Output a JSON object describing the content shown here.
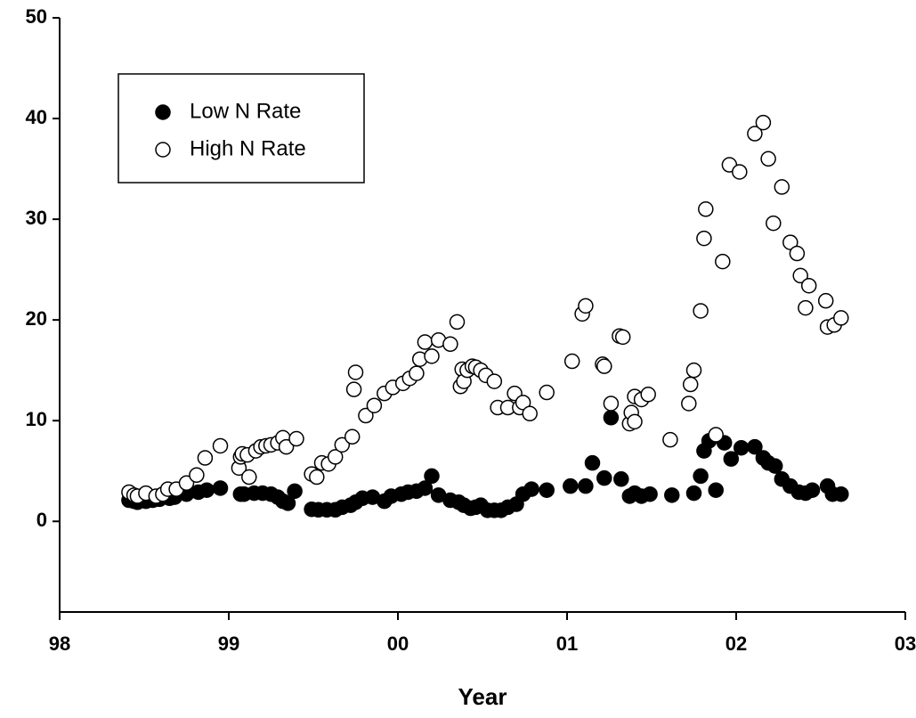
{
  "chart_data": {
    "type": "scatter",
    "x_label": "Year",
    "xlim": [
      1998,
      2003
    ],
    "ylim": [
      -9,
      50
    ],
    "xticks": [
      {
        "value": 1998,
        "label": "98"
      },
      {
        "value": 1999,
        "label": "99"
      },
      {
        "value": 2000,
        "label": "00"
      },
      {
        "value": 2001,
        "label": "01"
      },
      {
        "value": 2002,
        "label": "02"
      },
      {
        "value": 2003,
        "label": "03"
      }
    ],
    "yticks": [
      0,
      10,
      20,
      30,
      40,
      50
    ],
    "legend_position": "upper left",
    "series": [
      {
        "name": "Low N Rate",
        "color": "#000000",
        "fill": "#000000",
        "x": [
          1998.41,
          1998.44,
          1998.46,
          1998.51,
          1998.55,
          1998.59,
          1998.65,
          1998.68,
          1998.75,
          1998.82,
          1998.87,
          1998.95,
          1999.07,
          1999.09,
          1999.15,
          1999.2,
          1999.25,
          1999.29,
          1999.32,
          1999.35,
          1999.39,
          1999.49,
          1999.53,
          1999.58,
          1999.63,
          1999.67,
          1999.72,
          1999.75,
          1999.79,
          1999.85,
          1999.92,
          1999.96,
          2000.02,
          2000.06,
          2000.11,
          2000.16,
          2000.2,
          2000.24,
          2000.31,
          2000.36,
          2000.39,
          2000.43,
          2000.46,
          2000.49,
          2000.53,
          2000.57,
          2000.61,
          2000.65,
          2000.7,
          2000.74,
          2000.79,
          2000.88,
          2001.02,
          2001.11,
          2001.15,
          2001.22,
          2001.26,
          2001.32,
          2001.37,
          2001.4,
          2001.44,
          2001.49,
          2001.62,
          2001.75,
          2001.79,
          2001.81,
          2001.84,
          2001.88,
          2001.93,
          2001.97,
          2002.03,
          2002.11,
          2002.16,
          2002.19,
          2002.23,
          2002.27,
          2002.32,
          2002.37,
          2002.41,
          2002.45,
          2002.54,
          2002.57,
          2002.62
        ],
        "values": [
          2.1,
          2.0,
          1.9,
          2.0,
          2.1,
          2.2,
          2.3,
          2.4,
          2.7,
          2.9,
          3.1,
          3.3,
          2.7,
          2.7,
          2.8,
          2.8,
          2.7,
          2.4,
          2.0,
          1.8,
          3.0,
          1.2,
          1.15,
          1.15,
          1.15,
          1.4,
          1.6,
          1.9,
          2.3,
          2.4,
          2.0,
          2.5,
          2.7,
          2.9,
          3.0,
          3.3,
          4.5,
          2.6,
          2.1,
          1.9,
          1.6,
          1.3,
          1.4,
          1.6,
          1.1,
          1.1,
          1.1,
          1.4,
          1.7,
          2.7,
          3.2,
          3.1,
          3.5,
          3.5,
          5.8,
          4.3,
          10.3,
          4.2,
          2.5,
          2.8,
          2.5,
          2.7,
          2.6,
          2.8,
          4.5,
          7.0,
          8.0,
          3.1,
          7.8,
          6.2,
          7.3,
          7.4,
          6.3,
          5.8,
          5.5,
          4.2,
          3.5,
          2.9,
          2.8,
          3.1,
          3.5,
          2.7,
          2.7
        ]
      },
      {
        "name": "High N Rate",
        "color": "#000000",
        "fill": "#ffffff",
        "x": [
          1998.41,
          1998.44,
          1998.46,
          1998.51,
          1998.57,
          1998.61,
          1998.64,
          1998.69,
          1998.75,
          1998.81,
          1998.86,
          1998.95,
          1999.06,
          1999.07,
          1999.08,
          1999.11,
          1999.12,
          1999.16,
          1999.19,
          1999.22,
          1999.25,
          1999.29,
          1999.32,
          1999.34,
          1999.4,
          1999.49,
          1999.52,
          1999.55,
          1999.59,
          1999.63,
          1999.67,
          1999.73,
          1999.74,
          1999.75,
          1999.81,
          1999.86,
          1999.92,
          1999.97,
          2000.03,
          2000.07,
          2000.11,
          2000.13,
          2000.16,
          2000.2,
          2000.24,
          2000.31,
          2000.35,
          2000.37,
          2000.38,
          2000.39,
          2000.41,
          2000.44,
          2000.46,
          2000.49,
          2000.52,
          2000.57,
          2000.59,
          2000.65,
          2000.69,
          2000.72,
          2000.74,
          2000.78,
          2000.88,
          2001.03,
          2001.09,
          2001.11,
          2001.21,
          2001.22,
          2001.26,
          2001.31,
          2001.33,
          2001.37,
          2001.38,
          2001.4,
          2001.4,
          2001.44,
          2001.48,
          2001.61,
          2001.72,
          2001.73,
          2001.75,
          2001.79,
          2001.81,
          2001.82,
          2001.88,
          2001.92,
          2001.96,
          2002.02,
          2002.11,
          2002.16,
          2002.19,
          2002.22,
          2002.27,
          2002.32,
          2002.36,
          2002.38,
          2002.43,
          2002.41,
          2002.53,
          2002.54,
          2002.58,
          2002.62
        ],
        "values": [
          2.9,
          2.6,
          2.5,
          2.8,
          2.5,
          2.7,
          3.2,
          3.2,
          3.8,
          4.6,
          6.3,
          7.5,
          5.3,
          6.4,
          6.7,
          6.6,
          4.4,
          7.0,
          7.4,
          7.5,
          7.6,
          7.8,
          8.3,
          7.4,
          8.2,
          4.7,
          4.4,
          5.8,
          5.7,
          6.4,
          7.6,
          8.4,
          13.1,
          14.8,
          10.5,
          11.5,
          12.7,
          13.3,
          13.7,
          14.2,
          14.7,
          16.1,
          17.8,
          16.4,
          18.0,
          17.6,
          19.8,
          13.4,
          15.1,
          13.9,
          15.0,
          15.4,
          15.3,
          15.0,
          14.5,
          13.9,
          11.3,
          11.3,
          12.7,
          11.3,
          11.8,
          10.7,
          12.8,
          15.9,
          20.6,
          21.4,
          15.6,
          15.4,
          11.7,
          18.4,
          18.3,
          9.7,
          10.8,
          9.9,
          12.4,
          12.1,
          12.6,
          8.1,
          11.7,
          13.6,
          15.0,
          20.9,
          28.1,
          31.0,
          8.6,
          25.8,
          35.4,
          34.7,
          38.5,
          39.6,
          36.0,
          29.6,
          33.2,
          27.7,
          26.6,
          24.4,
          23.4,
          21.2,
          21.9,
          19.3,
          19.5,
          20.2
        ]
      }
    ]
  }
}
